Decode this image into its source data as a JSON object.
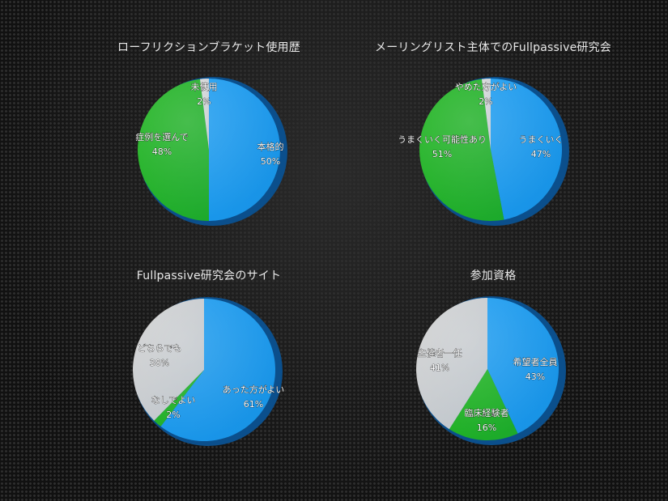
{
  "chart_data": [
    {
      "type": "pie",
      "title": "ローフリクションブラケット使用歴",
      "slices": [
        {
          "label": "本格的",
          "value": 50,
          "display": "50%",
          "color": "#1a9bf0"
        },
        {
          "label": "症例を選んで",
          "value": 48,
          "display": "48%",
          "color": "#1fb51f"
        },
        {
          "label": "未使用",
          "value": 2,
          "display": "2%",
          "color": "#d9d9d9"
        }
      ]
    },
    {
      "type": "pie",
      "title": "メーリングリスト主体でのFullpassive研究会",
      "slices": [
        {
          "label": "うまくいく",
          "value": 47,
          "display": "47%",
          "color": "#1a9bf0"
        },
        {
          "label": "うまくいく可能性あり",
          "value": 51,
          "display": "51%",
          "color": "#1fb51f"
        },
        {
          "label": "やめた方がよい",
          "value": 2,
          "display": "2%",
          "color": "#d9d9d9"
        }
      ]
    },
    {
      "type": "pie",
      "title": "Fullpassive研究会のサイト",
      "slices": [
        {
          "label": "あった方がよい",
          "value": 61,
          "display": "61%",
          "color": "#1a9bf0"
        },
        {
          "label": "なしでよい",
          "value": 2,
          "display": "2%",
          "color": "#1fb51f"
        },
        {
          "label": "どちらでも",
          "value": 38,
          "display": "38%",
          "color": "#d2d2d2"
        }
      ]
    },
    {
      "type": "pie",
      "title": "参加資格",
      "slices": [
        {
          "label": "希望者全員",
          "value": 43,
          "display": "43%",
          "color": "#1a9bf0"
        },
        {
          "label": "臨床経験者",
          "value": 16,
          "display": "16%",
          "color": "#1fb51f"
        },
        {
          "label": "主催者一任",
          "value": 41,
          "display": "41%",
          "color": "#d2d2d2"
        }
      ]
    }
  ]
}
